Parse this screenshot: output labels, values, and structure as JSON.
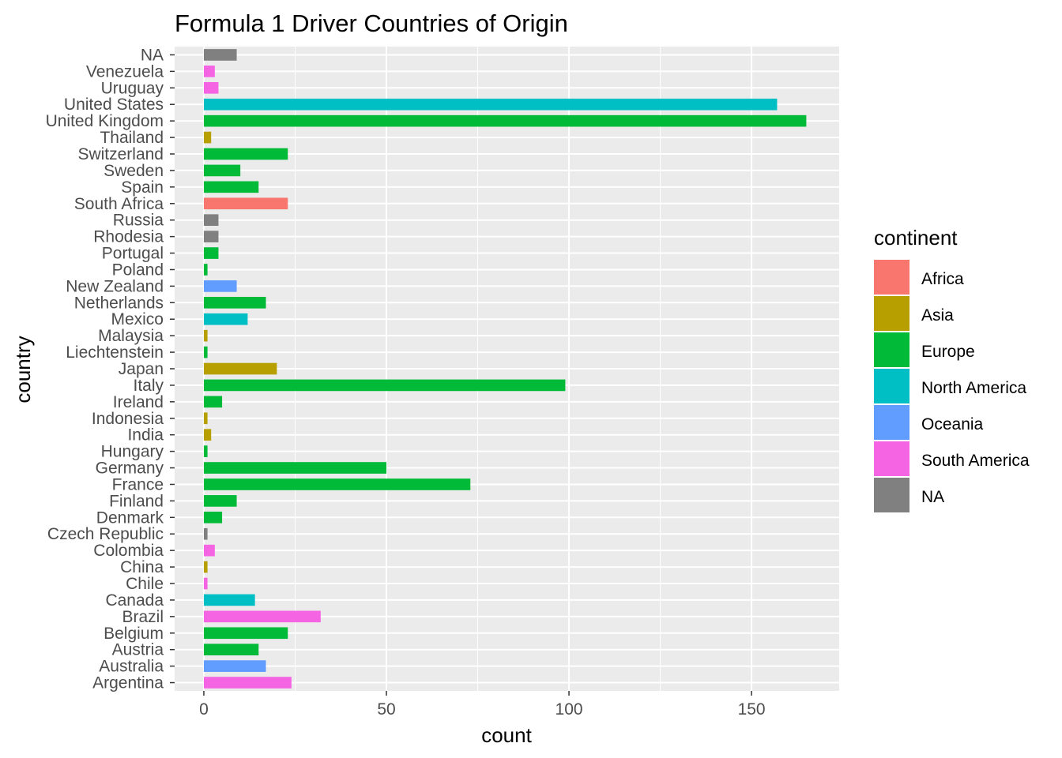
{
  "chart_data": {
    "type": "bar",
    "orientation": "horizontal",
    "title": "Formula 1 Driver Countries of Origin",
    "xlabel": "count",
    "ylabel": "country",
    "xlim": [
      -8,
      174
    ],
    "x_ticks": [
      0,
      50,
      100,
      150
    ],
    "grid": true,
    "legend": {
      "title": "continent",
      "position": "right",
      "entries": [
        {
          "name": "Africa",
          "color": "#F8766D"
        },
        {
          "name": "Asia",
          "color": "#B79F00"
        },
        {
          "name": "Europe",
          "color": "#00BA38"
        },
        {
          "name": "North America",
          "color": "#00BFC4"
        },
        {
          "name": "Oceania",
          "color": "#619CFF"
        },
        {
          "name": "South America",
          "color": "#F564E3"
        },
        {
          "name": "NA",
          "color": "#808080"
        }
      ]
    },
    "categories": [
      "Argentina",
      "Australia",
      "Austria",
      "Belgium",
      "Brazil",
      "Canada",
      "Chile",
      "China",
      "Colombia",
      "Czech Republic",
      "Denmark",
      "Finland",
      "France",
      "Germany",
      "Hungary",
      "India",
      "Indonesia",
      "Ireland",
      "Italy",
      "Japan",
      "Liechtenstein",
      "Malaysia",
      "Mexico",
      "Netherlands",
      "New Zealand",
      "Poland",
      "Portugal",
      "Rhodesia",
      "Russia",
      "South Africa",
      "Spain",
      "Sweden",
      "Switzerland",
      "Thailand",
      "United Kingdom",
      "United States",
      "Uruguay",
      "Venezuela",
      "NA"
    ],
    "values": [
      24,
      17,
      15,
      23,
      32,
      14,
      1,
      1,
      3,
      1,
      5,
      9,
      73,
      50,
      1,
      2,
      1,
      5,
      99,
      20,
      1,
      1,
      12,
      17,
      9,
      1,
      4,
      4,
      4,
      23,
      15,
      10,
      23,
      2,
      165,
      157,
      4,
      3,
      9
    ],
    "continents": [
      "South America",
      "Oceania",
      "Europe",
      "Europe",
      "South America",
      "North America",
      "South America",
      "Asia",
      "South America",
      "NA",
      "Europe",
      "Europe",
      "Europe",
      "Europe",
      "Europe",
      "Asia",
      "Asia",
      "Europe",
      "Europe",
      "Asia",
      "Europe",
      "Asia",
      "North America",
      "Europe",
      "Oceania",
      "Europe",
      "Europe",
      "NA",
      "NA",
      "Africa",
      "Europe",
      "Europe",
      "Europe",
      "Asia",
      "Europe",
      "North America",
      "South America",
      "South America",
      "NA"
    ]
  }
}
